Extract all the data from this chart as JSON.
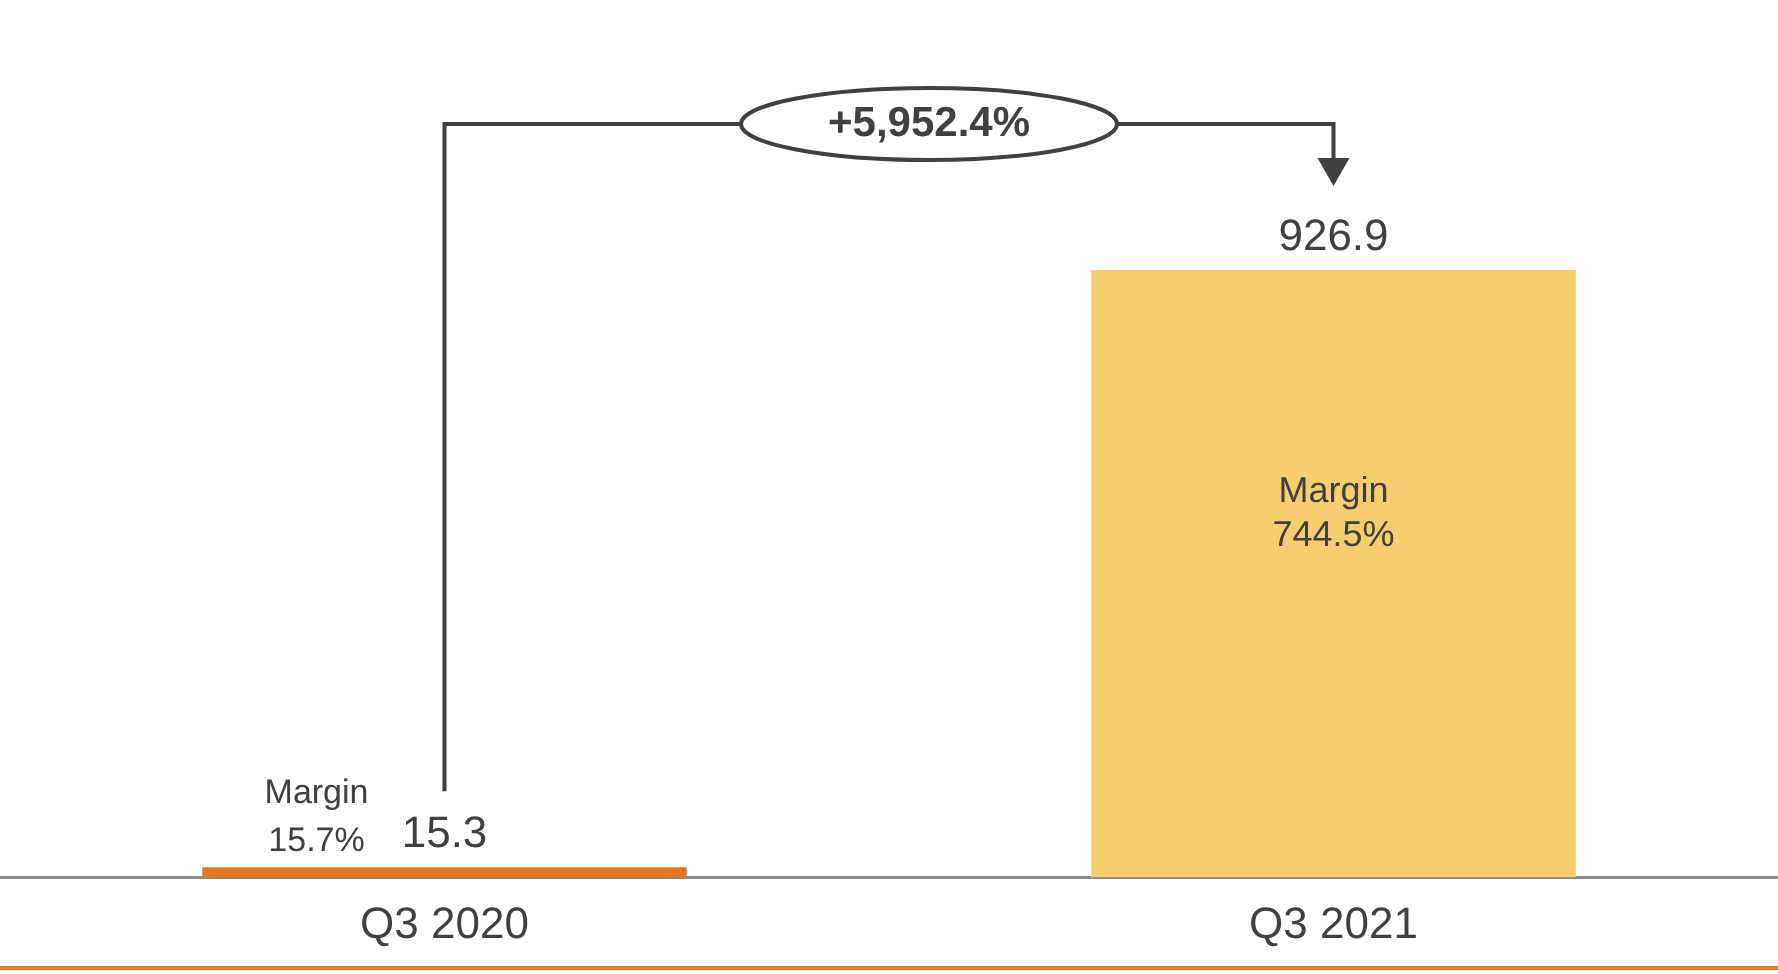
{
  "chart_data": {
    "type": "bar",
    "categories": [
      "Q3 2020",
      "Q3 2021"
    ],
    "values": [
      15.3,
      926.9
    ],
    "colors": [
      "#e87722",
      "#f8cd6e"
    ],
    "data_labels": true,
    "grid": false,
    "legend": false,
    "tick_labels": "x",
    "annotations": [
      "Margin\n15.7%",
      "Margin\n744.5%",
      "+5,952.4%"
    ]
  }
}
